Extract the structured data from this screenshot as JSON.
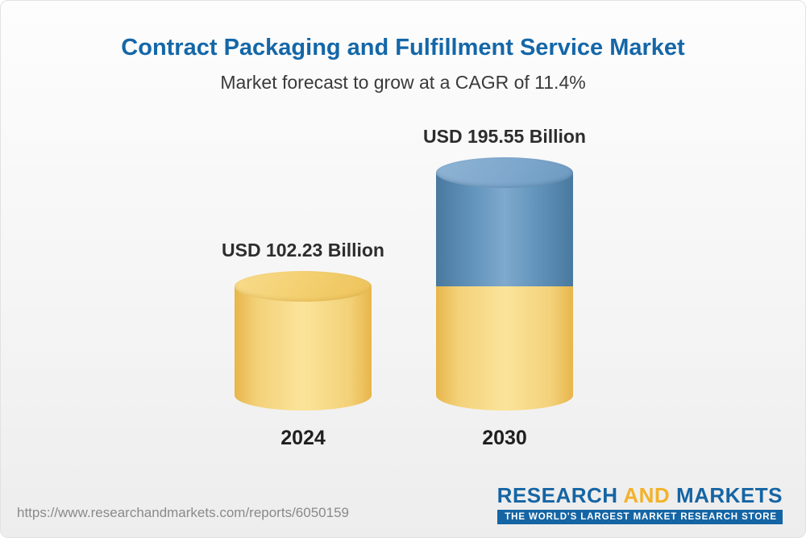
{
  "header": {
    "title": "Contract Packaging and Fulfillment Service Market",
    "subtitle": "Market forecast to grow at a CAGR of 11.4%"
  },
  "chart_data": {
    "type": "bar",
    "title": "Contract Packaging and Fulfillment Service Market",
    "subtitle": "Market forecast to grow at a CAGR of 11.4%",
    "categories": [
      "2024",
      "2030"
    ],
    "values": [
      102.23,
      195.55
    ],
    "value_labels": [
      "USD 102.23 Billion",
      "USD 195.55 Billion"
    ],
    "unit": "USD Billion",
    "cagr": "11.4%",
    "legend": "none",
    "grid": false,
    "colors": {
      "bar_2024": "#F2CA67",
      "bar_2030_base": "#F2CA67",
      "bar_2030_growth": "#5B89B0",
      "title_blue": "#1467A8"
    }
  },
  "footer": {
    "url": "https://www.researchandmarkets.com/reports/6050159",
    "logo": {
      "research": "RESEARCH",
      "and": "AND",
      "markets": "MARKETS",
      "tagline": "THE WORLD'S LARGEST MARKET RESEARCH STORE"
    }
  }
}
